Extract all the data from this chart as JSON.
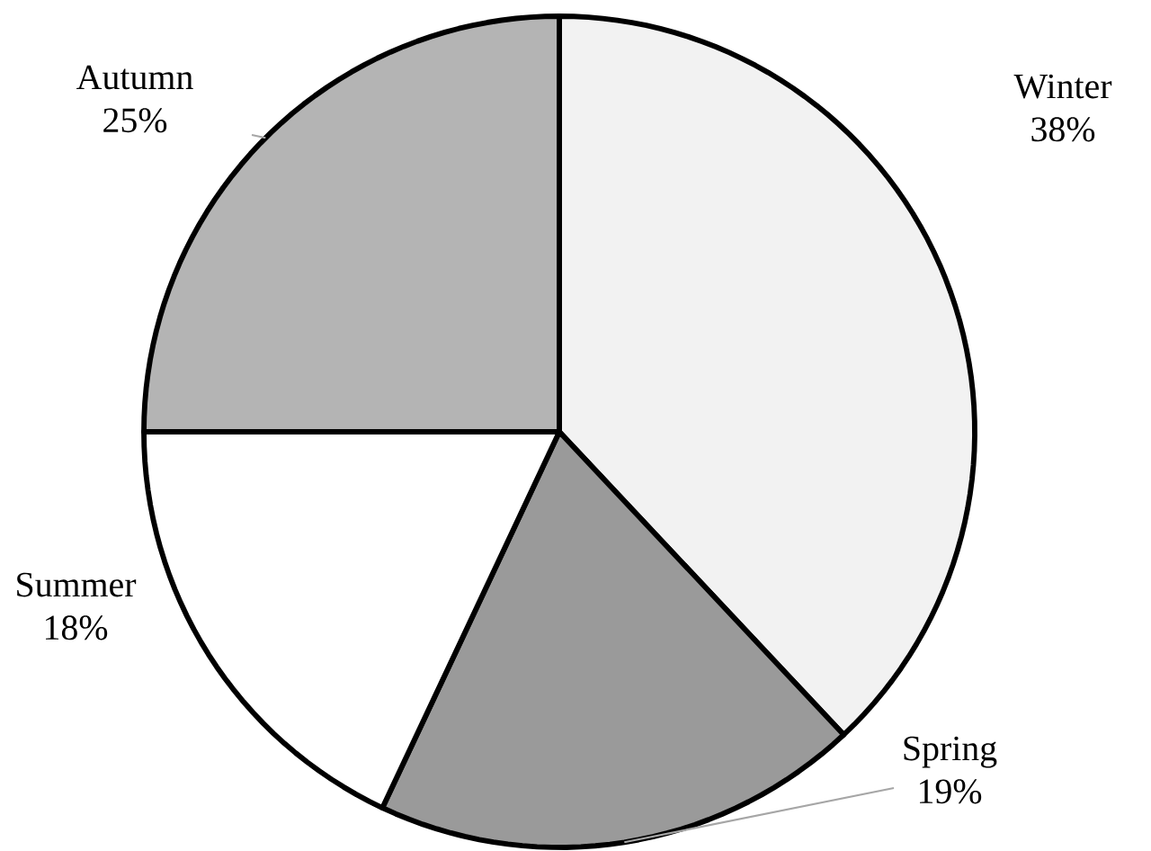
{
  "chart_data": {
    "type": "pie",
    "categories": [
      "Winter",
      "Spring",
      "Summer",
      "Autumn"
    ],
    "values": [
      38,
      19,
      18,
      25
    ],
    "value_labels": [
      "38%",
      "19%",
      "18%",
      "25%"
    ],
    "colors": [
      "#f2f2f2",
      "#9a9a9a",
      "#ffffff",
      "#b4b4b4"
    ]
  }
}
